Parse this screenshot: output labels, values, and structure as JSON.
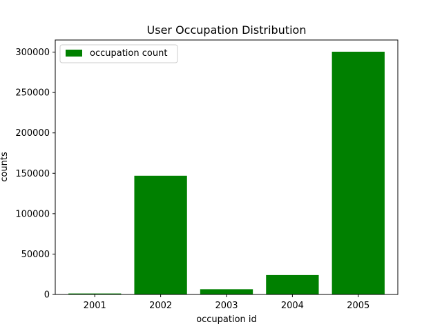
{
  "chart_data": {
    "type": "bar",
    "title": "User Occupation Distribution",
    "xlabel": "occupation id",
    "ylabel": "counts",
    "categories": [
      "2001",
      "2002",
      "2003",
      "2004",
      "2005"
    ],
    "series": [
      {
        "name": "occupation count",
        "values": [
          1200,
          147000,
          6500,
          24000,
          300500
        ],
        "color": "#008000"
      }
    ],
    "ylim": [
      0,
      315000
    ],
    "yticks": [
      0,
      50000,
      100000,
      150000,
      200000,
      250000,
      300000
    ],
    "ytick_labels": [
      "0",
      "50000",
      "100000",
      "150000",
      "200000",
      "250000",
      "300000"
    ],
    "grid": false,
    "legend_position": "top-left"
  }
}
